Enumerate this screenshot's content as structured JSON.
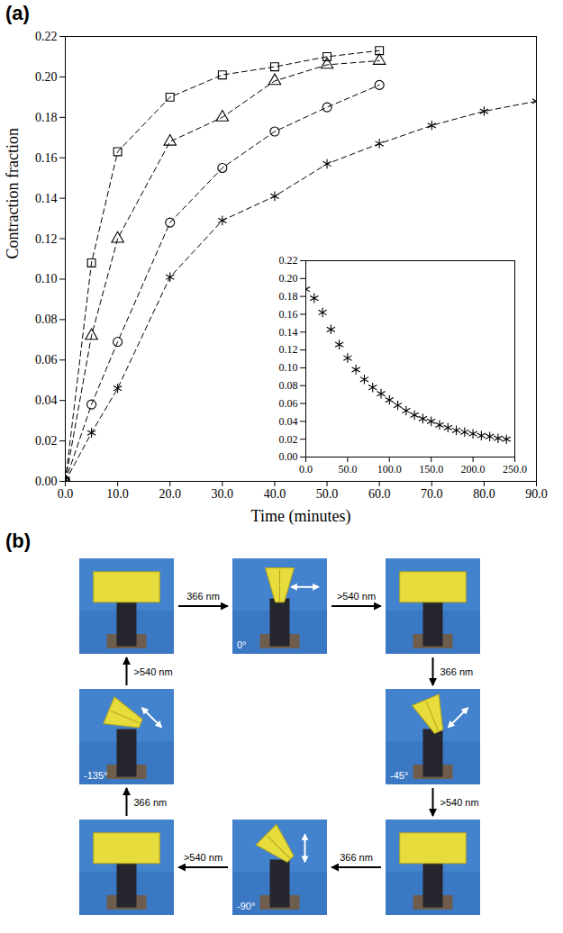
{
  "panel_labels": [
    "(a)",
    "(b)"
  ],
  "chart_data": [
    {
      "type": "line",
      "x_label": "Time (minutes)",
      "y_label": "Contraction fraction",
      "xlim": [
        0,
        90
      ],
      "xticks": [
        {
          "value": 0,
          "label": "0.0"
        },
        {
          "value": 10,
          "label": "10.0"
        },
        {
          "value": 20,
          "label": "20.0"
        },
        {
          "value": 30,
          "label": "30.0"
        },
        {
          "value": 40,
          "label": "40.0"
        },
        {
          "value": 50,
          "label": "50.0"
        },
        {
          "value": 60,
          "label": "60.0"
        },
        {
          "value": 70,
          "label": "70.0"
        },
        {
          "value": 80,
          "label": "80.0"
        },
        {
          "value": 90,
          "label": "90.0"
        }
      ],
      "ylim": [
        0,
        0.22
      ],
      "yticks": [
        {
          "value": 0,
          "label": "0.00"
        },
        {
          "value": 0.02,
          "label": "0.02"
        },
        {
          "value": 0.04,
          "label": "0.04"
        },
        {
          "value": 0.06,
          "label": "0.06"
        },
        {
          "value": 0.08,
          "label": "0.08"
        },
        {
          "value": 0.1,
          "label": "0.10"
        },
        {
          "value": 0.12,
          "label": "0.12"
        },
        {
          "value": 0.14,
          "label": "0.14"
        },
        {
          "value": 0.16,
          "label": "0.16"
        },
        {
          "value": 0.18,
          "label": "0.18"
        },
        {
          "value": 0.2,
          "label": "0.20"
        },
        {
          "value": 0.22,
          "label": "0.22"
        }
      ],
      "series": [
        {
          "color": "#000000",
          "marker": "square",
          "line_style": "dashed",
          "x": [
            0,
            5,
            10,
            20,
            30,
            40,
            50,
            60
          ],
          "values": [
            0,
            0.108,
            0.163,
            0.19,
            0.201,
            0.205,
            0.21,
            0.213
          ]
        },
        {
          "color": "#000000",
          "marker": "triangle",
          "line_style": "dashed",
          "x": [
            0,
            5,
            10,
            20,
            30,
            40,
            50,
            60
          ],
          "values": [
            0,
            0.072,
            0.12,
            0.168,
            0.18,
            0.198,
            0.206,
            0.208
          ]
        },
        {
          "color": "#000000",
          "marker": "circle",
          "line_style": "dashed",
          "x": [
            0,
            5,
            10,
            20,
            30,
            40,
            50,
            60
          ],
          "values": [
            0,
            0.038,
            0.069,
            0.128,
            0.155,
            0.173,
            0.185,
            0.196
          ]
        },
        {
          "color": "#000000",
          "marker": "asterisk",
          "line_style": "dashed",
          "x": [
            0,
            5,
            10,
            20,
            30,
            40,
            50,
            60,
            70,
            80,
            90
          ],
          "values": [
            0,
            0.024,
            0.046,
            0.101,
            0.129,
            0.141,
            0.157,
            0.167,
            0.176,
            0.183,
            0.188
          ]
        }
      ]
    },
    {
      "type": "scatter",
      "xlim": [
        0,
        250
      ],
      "xticks": [
        {
          "value": 0,
          "label": "0.0"
        },
        {
          "value": 50,
          "label": "50.0"
        },
        {
          "value": 100,
          "label": "100.0"
        },
        {
          "value": 150,
          "label": "150.0"
        },
        {
          "value": 200,
          "label": "200.0"
        },
        {
          "value": 250,
          "label": "250.0"
        }
      ],
      "ylim": [
        0,
        0.22
      ],
      "yticks": [
        {
          "value": 0,
          "label": "0.00"
        },
        {
          "value": 0.02,
          "label": "0.02"
        },
        {
          "value": 0.04,
          "label": "0.04"
        },
        {
          "value": 0.06,
          "label": "0.06"
        },
        {
          "value": 0.08,
          "label": "0.08"
        },
        {
          "value": 0.1,
          "label": "0.10"
        },
        {
          "value": 0.12,
          "label": "0.12"
        },
        {
          "value": 0.14,
          "label": "0.14"
        },
        {
          "value": 0.16,
          "label": "0.16"
        },
        {
          "value": 0.18,
          "label": "0.18"
        },
        {
          "value": 0.2,
          "label": "0.20"
        },
        {
          "value": 0.22,
          "label": "0.22"
        }
      ],
      "series": [
        {
          "color": "#000000",
          "marker": "asterisk",
          "x": [
            0,
            10,
            20,
            30,
            40,
            50,
            60,
            70,
            80,
            90,
            100,
            110,
            120,
            130,
            140,
            150,
            160,
            170,
            180,
            190,
            200,
            210,
            220,
            230,
            240
          ],
          "values": [
            0.188,
            0.178,
            0.162,
            0.143,
            0.126,
            0.111,
            0.098,
            0.087,
            0.078,
            0.071,
            0.064,
            0.058,
            0.052,
            0.047,
            0.043,
            0.04,
            0.036,
            0.033,
            0.03,
            0.028,
            0.026,
            0.024,
            0.023,
            0.021,
            0.02
          ]
        }
      ]
    }
  ],
  "diagram": {
    "steps": [
      {
        "light": "366 nm",
        "polarization": {
          "value": 0,
          "label": "0°"
        }
      },
      {
        "light": ">540 nm"
      },
      {
        "light": "366 nm",
        "polarization": {
          "value": -45,
          "label": "-45°"
        }
      },
      {
        "light": ">540 nm"
      },
      {
        "light": "366 nm",
        "polarization": {
          "value": -90,
          "label": "-90°"
        }
      },
      {
        "light": ">540 nm"
      },
      {
        "light": "366 nm",
        "polarization": {
          "value": -135,
          "label": "-135°"
        }
      },
      {
        "light": ">540 nm"
      }
    ]
  }
}
